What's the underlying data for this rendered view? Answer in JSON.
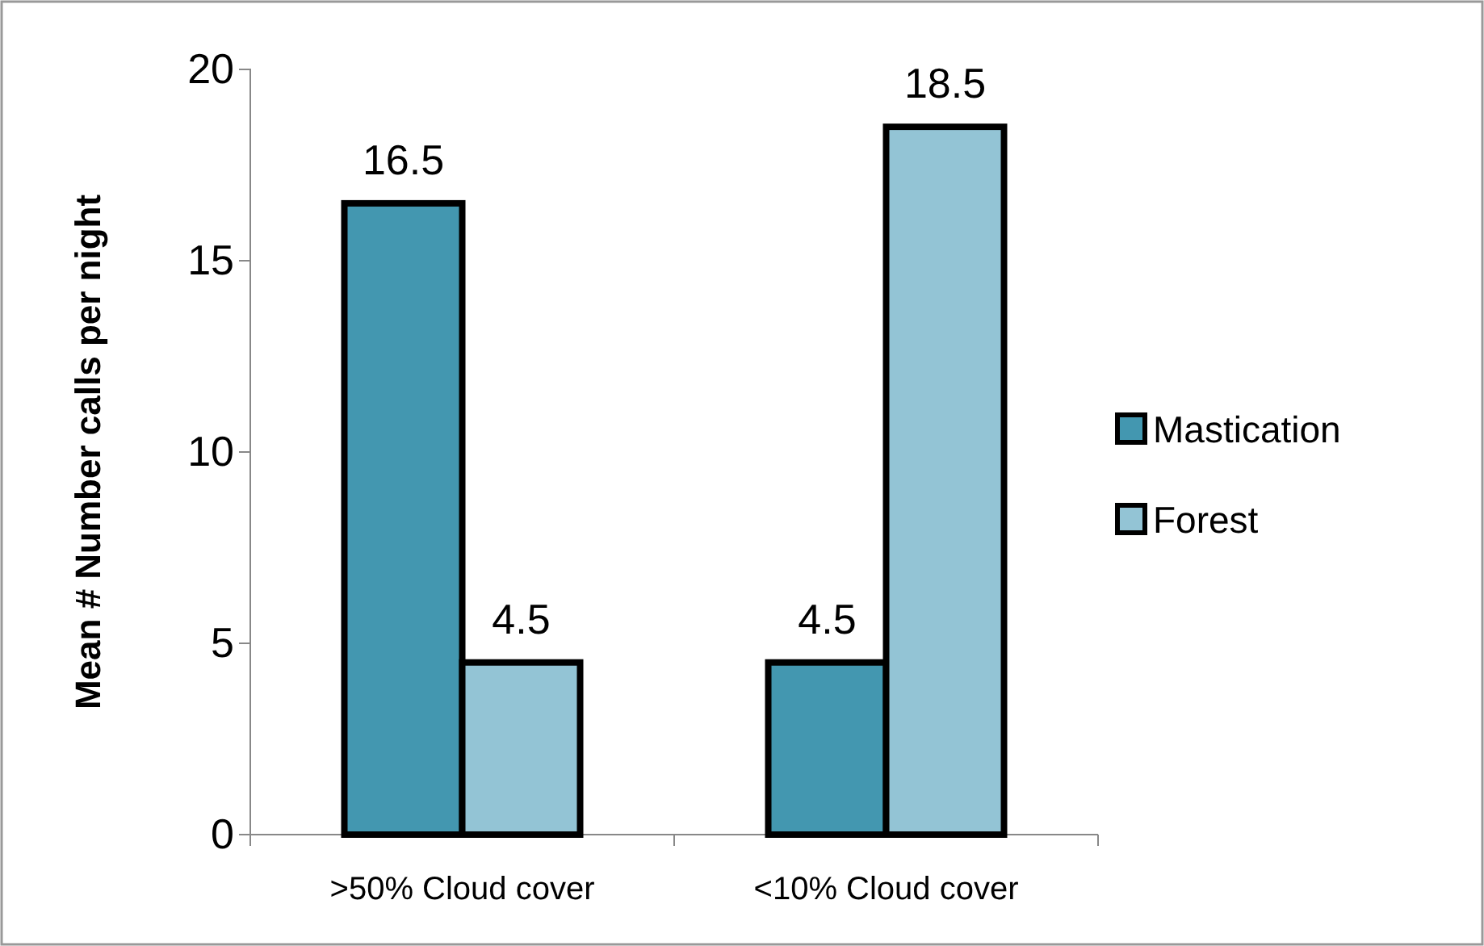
{
  "chart_data": {
    "type": "bar",
    "ylabel": "Mean # Number calls per night",
    "categories": [
      ">50% Cloud cover",
      "<10% Cloud cover"
    ],
    "series": [
      {
        "name": "Mastication",
        "color": "#4397b0",
        "values": [
          16.5,
          4.5
        ]
      },
      {
        "name": "Forest",
        "color": "#93c4d5",
        "values": [
          4.5,
          18.5
        ]
      }
    ],
    "ylim": [
      0,
      20
    ],
    "yticks": [
      0,
      5,
      10,
      15,
      20
    ],
    "grid": false,
    "legend": "right",
    "data_labels": true
  }
}
